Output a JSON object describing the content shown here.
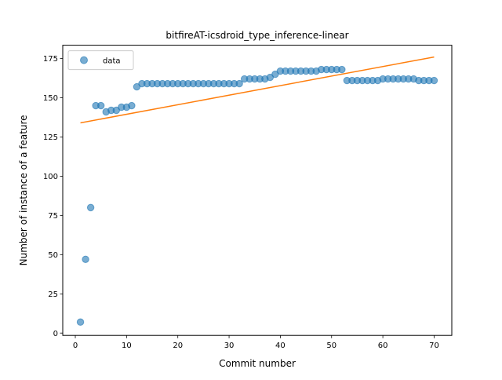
{
  "chart_data": {
    "type": "scatter",
    "title": "bitfireAT-icsdroid_type_inference-linear",
    "xlabel": "Commit number",
    "ylabel": "Number of instance of a feature",
    "xlim": [
      -2.45,
      73.45
    ],
    "ylim": [
      -1.5,
      183.5
    ],
    "xticks": [
      0,
      10,
      20,
      30,
      40,
      50,
      60,
      70
    ],
    "yticks": [
      0,
      25,
      50,
      75,
      100,
      125,
      150,
      175
    ],
    "grid": false,
    "legend_position": "top-left",
    "series": [
      {
        "name": "data",
        "kind": "scatter",
        "color": "#1f77b4",
        "x": [
          1,
          2,
          3,
          4,
          5,
          6,
          7,
          8,
          9,
          10,
          11,
          12,
          13,
          14,
          15,
          16,
          17,
          18,
          19,
          20,
          21,
          22,
          23,
          24,
          25,
          26,
          27,
          28,
          29,
          30,
          31,
          32,
          33,
          34,
          35,
          36,
          37,
          38,
          39,
          40,
          41,
          42,
          43,
          44,
          45,
          46,
          47,
          48,
          49,
          50,
          51,
          52,
          53,
          54,
          55,
          56,
          57,
          58,
          59,
          60,
          61,
          62,
          63,
          64,
          65,
          66,
          67,
          68,
          69,
          70
        ],
        "y": [
          7,
          47,
          80,
          145,
          145,
          141,
          142,
          142,
          144,
          144,
          145,
          157,
          159,
          159,
          159,
          159,
          159,
          159,
          159,
          159,
          159,
          159,
          159,
          159,
          159,
          159,
          159,
          159,
          159,
          159,
          159,
          159,
          162,
          162,
          162,
          162,
          162,
          163,
          165,
          167,
          167,
          167,
          167,
          167,
          167,
          167,
          167,
          168,
          168,
          168,
          168,
          168,
          161,
          161,
          161,
          161,
          161,
          161,
          161,
          162,
          162,
          162,
          162,
          162,
          162,
          162,
          161,
          161,
          161,
          161
        ]
      },
      {
        "kind": "line",
        "color": "#ff7f0e",
        "x": [
          1,
          70
        ],
        "y": [
          134,
          176
        ]
      }
    ]
  },
  "legend": {
    "entries": [
      {
        "label": "data",
        "color": "#1f77b4",
        "marker": "circle"
      }
    ]
  }
}
